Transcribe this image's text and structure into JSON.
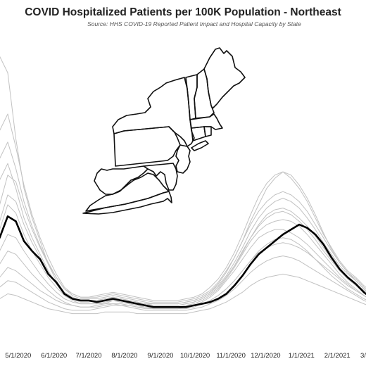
{
  "chart_data": {
    "type": "line",
    "title": "COVID Hospitalized Patients per 100K Population - Northeast",
    "subtitle": "Source: HHS COVID-19 Reported Patient Impact and Hospital Capacity by State",
    "xlabel": "",
    "ylabel": "",
    "x_tick_labels": [
      "5/1/2020",
      "6/1/2020",
      "7/1/2020",
      "8/1/2020",
      "9/1/2020",
      "10/1/2020",
      "11/1/2020",
      "12/1/2020",
      "1/1/2021",
      "2/1/2021",
      "3/1/20"
    ],
    "x": [
      "2020-04-08",
      "2020-04-15",
      "2020-04-22",
      "2020-04-29",
      "2020-05-06",
      "2020-05-13",
      "2020-05-20",
      "2020-05-27",
      "2020-06-03",
      "2020-06-10",
      "2020-06-17",
      "2020-06-24",
      "2020-07-01",
      "2020-07-08",
      "2020-07-15",
      "2020-07-22",
      "2020-07-29",
      "2020-08-05",
      "2020-08-12",
      "2020-08-19",
      "2020-08-26",
      "2020-09-02",
      "2020-09-09",
      "2020-09-16",
      "2020-09-23",
      "2020-09-30",
      "2020-10-07",
      "2020-10-14",
      "2020-10-21",
      "2020-10-28",
      "2020-11-04",
      "2020-11-11",
      "2020-11-18",
      "2020-11-25",
      "2020-12-02",
      "2020-12-09",
      "2020-12-16",
      "2020-12-23",
      "2020-12-30",
      "2021-01-06",
      "2021-01-13",
      "2021-01-20",
      "2021-01-27",
      "2021-02-03",
      "2021-02-10",
      "2021-02-17",
      "2021-02-24",
      "2021-03-03",
      "2021-03-10"
    ],
    "grid": false,
    "legend": "none",
    "map_inset": "Northeast states outline",
    "series": [
      {
        "highlight": true,
        "color": "#000000",
        "values": [
          57,
          50,
          63,
          60,
          48,
          42,
          37,
          28,
          23,
          16,
          13,
          12,
          12,
          11,
          12,
          13,
          12,
          11,
          10,
          9,
          8,
          8,
          8,
          8,
          8,
          9,
          10,
          11,
          13,
          16,
          21,
          27,
          34,
          40,
          44,
          48,
          52,
          55,
          58,
          56,
          52,
          46,
          38,
          31,
          26,
          22,
          17,
          13,
          11
        ]
      },
      {
        "color": "#c2c2c2",
        "values": [
          120,
          160,
          150,
          110,
          80,
          62,
          48,
          34,
          24,
          17,
          14,
          12,
          12,
          12,
          13,
          14,
          13,
          12,
          11,
          10,
          10,
          10,
          10,
          10,
          11,
          12,
          14,
          17,
          22,
          29,
          38,
          48,
          60,
          70,
          80,
          86,
          90,
          88,
          82,
          74,
          64,
          53,
          43,
          35,
          29,
          24,
          19,
          15,
          13
        ]
      },
      {
        "color": "#c2c2c2",
        "values": [
          95,
          115,
          125,
          105,
          82,
          64,
          50,
          38,
          28,
          20,
          16,
          14,
          14,
          15,
          16,
          17,
          16,
          15,
          14,
          13,
          12,
          12,
          12,
          12,
          13,
          14,
          16,
          20,
          25,
          32,
          41,
          52,
          64,
          75,
          83,
          88,
          90,
          86,
          80,
          72,
          62,
          52,
          44,
          36,
          30,
          26,
          21,
          17,
          14
        ]
      },
      {
        "color": "#c2c2c2",
        "values": [
          70,
          85,
          95,
          80,
          62,
          50,
          40,
          30,
          22,
          16,
          13,
          11,
          11,
          12,
          13,
          14,
          13,
          12,
          11,
          10,
          9,
          9,
          9,
          9,
          10,
          11,
          13,
          16,
          20,
          26,
          33,
          42,
          50,
          58,
          64,
          67,
          68,
          66,
          62,
          57,
          51,
          44,
          37,
          31,
          26,
          22,
          18,
          14,
          12
        ]
      },
      {
        "color": "#c2c2c2",
        "values": [
          40,
          55,
          70,
          65,
          52,
          42,
          34,
          26,
          20,
          15,
          12,
          10,
          10,
          10,
          11,
          12,
          11,
          10,
          9,
          8,
          8,
          8,
          8,
          8,
          9,
          10,
          12,
          15,
          19,
          25,
          32,
          40,
          48,
          54,
          58,
          60,
          61,
          60,
          57,
          52,
          46,
          40,
          34,
          28,
          23,
          19,
          15,
          12,
          10
        ]
      },
      {
        "color": "#c2c2c2",
        "values": [
          30,
          42,
          52,
          50,
          42,
          35,
          28,
          22,
          17,
          13,
          11,
          10,
          10,
          10,
          10,
          10,
          10,
          9,
          8,
          8,
          7,
          7,
          7,
          7,
          8,
          9,
          11,
          14,
          18,
          24,
          30,
          37,
          44,
          50,
          53,
          55,
          55,
          53,
          50,
          46,
          41,
          36,
          31,
          26,
          22,
          18,
          15,
          12,
          10
        ]
      },
      {
        "color": "#c2c2c2",
        "values": [
          20,
          26,
          32,
          30,
          26,
          22,
          18,
          15,
          12,
          10,
          9,
          8,
          8,
          9,
          10,
          12,
          11,
          10,
          9,
          8,
          7,
          7,
          7,
          7,
          8,
          9,
          10,
          12,
          15,
          19,
          24,
          30,
          36,
          41,
          44,
          46,
          47,
          46,
          44,
          41,
          37,
          33,
          29,
          25,
          21,
          18,
          15,
          12,
          10
        ]
      },
      {
        "color": "#c2c2c2",
        "values": [
          15,
          20,
          24,
          23,
          20,
          17,
          14,
          11,
          9,
          7,
          6,
          6,
          6,
          7,
          8,
          9,
          9,
          8,
          7,
          6,
          6,
          6,
          6,
          6,
          6,
          7,
          8,
          10,
          12,
          15,
          19,
          24,
          29,
          33,
          36,
          38,
          39,
          38,
          36,
          33,
          30,
          27,
          24,
          21,
          18,
          15,
          12,
          10,
          9
        ]
      },
      {
        "color": "#c2c2c2",
        "values": [
          10,
          13,
          16,
          15,
          13,
          11,
          9,
          7,
          6,
          5,
          4,
          4,
          4,
          4,
          5,
          5,
          5,
          5,
          4,
          4,
          4,
          4,
          4,
          4,
          4,
          5,
          6,
          7,
          9,
          11,
          14,
          17,
          21,
          24,
          26,
          27,
          28,
          27,
          26,
          24,
          22,
          20,
          18,
          16,
          14,
          12,
          10,
          8,
          7
        ]
      },
      {
        "color": "#c2c2c2",
        "values": [
          55,
          70,
          88,
          84,
          68,
          55,
          44,
          34,
          26,
          19,
          16,
          14,
          14,
          14,
          15,
          16,
          15,
          14,
          13,
          12,
          11,
          11,
          11,
          11,
          12,
          13,
          15,
          18,
          23,
          30,
          38,
          48,
          58,
          66,
          72,
          76,
          78,
          76,
          72,
          66,
          58,
          50,
          42,
          35,
          29,
          25,
          20,
          16,
          13
        ]
      },
      {
        "color": "#c2c2c2",
        "values": [
          80,
          98,
          108,
          92,
          72,
          57,
          45,
          35,
          26,
          19,
          15,
          13,
          13,
          13,
          14,
          15,
          14,
          13,
          12,
          11,
          10,
          10,
          10,
          10,
          11,
          12,
          14,
          17,
          21,
          27,
          35,
          44,
          54,
          62,
          68,
          72,
          74,
          72,
          68,
          62,
          55,
          47,
          40,
          33,
          28,
          24,
          19,
          15,
          12
        ]
      },
      {
        "color": "#c2c2c2",
        "values": [
          25,
          34,
          42,
          40,
          34,
          28,
          23,
          18,
          14,
          11,
          9,
          8,
          8,
          8,
          9,
          10,
          9,
          9,
          8,
          7,
          7,
          7,
          7,
          7,
          7,
          8,
          10,
          12,
          15,
          19,
          24,
          30,
          36,
          42,
          46,
          49,
          50,
          49,
          46,
          42,
          37,
          32,
          27,
          23,
          19,
          16,
          13,
          11,
          9
        ]
      },
      {
        "color": "#c2c2c2",
        "values": [
          45,
          60,
          76,
          72,
          58,
          47,
          38,
          29,
          22,
          16,
          13,
          12,
          12,
          12,
          13,
          14,
          13,
          12,
          11,
          10,
          9,
          9,
          9,
          9,
          10,
          11,
          13,
          16,
          20,
          26,
          33,
          41,
          50,
          57,
          62,
          65,
          66,
          64,
          60,
          55,
          49,
          42,
          36,
          30,
          25,
          21,
          17,
          14,
          11
        ]
      }
    ]
  },
  "map": {
    "alt": "Northeast region map"
  }
}
